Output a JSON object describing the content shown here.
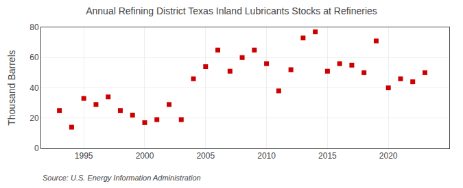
{
  "chart_data": {
    "type": "scatter",
    "title": "Annual Refining District Texas Inland Lubricants Stocks at Refineries",
    "ylabel": "Thousand Barrels",
    "source": "Source: U.S. Energy Information Administration",
    "x": [
      1993,
      1994,
      1995,
      1996,
      1997,
      1998,
      1999,
      2000,
      2001,
      2002,
      2003,
      2004,
      2005,
      2006,
      2007,
      2008,
      2009,
      2010,
      2011,
      2012,
      2013,
      2014,
      2015,
      2016,
      2017,
      2018,
      2019,
      2020,
      2021,
      2022,
      2023
    ],
    "values": [
      25,
      14,
      33,
      29,
      34,
      25,
      22,
      17,
      19,
      29,
      19,
      46,
      54,
      65,
      51,
      60,
      65,
      56,
      38,
      52,
      73,
      77,
      51,
      56,
      55,
      50,
      71,
      40,
      46,
      44,
      50
    ],
    "color": "#cc0000",
    "marker": "square",
    "xlim": [
      1991.5,
      2025
    ],
    "xticks": [
      1995,
      2000,
      2005,
      2010,
      2015,
      2020
    ],
    "ylim": [
      0,
      80
    ],
    "yticks": [
      0,
      20,
      40,
      60,
      80
    ],
    "grid": true
  }
}
